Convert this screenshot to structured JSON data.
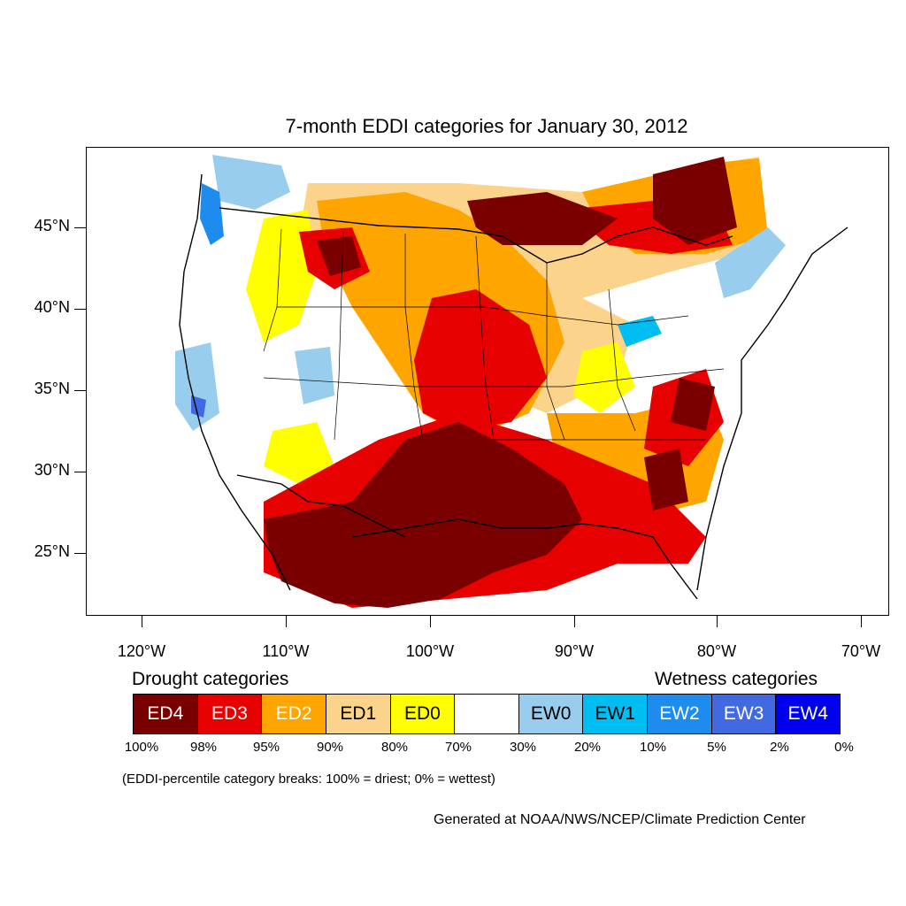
{
  "title": "7-month EDDI categories for January 30, 2012",
  "lat_labels": [
    "45°N",
    "40°N",
    "35°N",
    "30°N",
    "25°N"
  ],
  "lon_labels": [
    "120°W",
    "110°W",
    "100°W",
    "90°W",
    "80°W",
    "70°W"
  ],
  "drought_heading": "Drought categories",
  "wetness_heading": "Wetness categories",
  "legend": [
    {
      "label": "ED4",
      "color": "#7a0000",
      "text_color": "#ffffff"
    },
    {
      "label": "ED3",
      "color": "#e60000",
      "text_color": "#ffffff"
    },
    {
      "label": "ED2",
      "color": "#ffa500",
      "text_color": "#ffffff"
    },
    {
      "label": "ED1",
      "color": "#fcd38a",
      "text_color": "#000000"
    },
    {
      "label": "ED0",
      "color": "#ffff00",
      "text_color": "#000000"
    },
    {
      "label": "",
      "color": "#ffffff",
      "text_color": "#000000"
    },
    {
      "label": "EW0",
      "color": "#98cdee",
      "text_color": "#000000"
    },
    {
      "label": "EW1",
      "color": "#00bdf2",
      "text_color": "#000000"
    },
    {
      "label": "EW2",
      "color": "#1e8cef",
      "text_color": "#ffffff"
    },
    {
      "label": "EW3",
      "color": "#4169e1",
      "text_color": "#ffffff"
    },
    {
      "label": "EW4",
      "color": "#0000ee",
      "text_color": "#ffffff"
    }
  ],
  "breaks": [
    "100%",
    "98%",
    "95%",
    "90%",
    "80%",
    "70%",
    "30%",
    "20%",
    "10%",
    "5%",
    "2%",
    "0%"
  ],
  "note": "(EDDI-percentile category breaks: 100% = driest; 0% = wettest)",
  "credit": "Generated at NOAA/NWS/NCEP/Climate Prediction Center"
}
